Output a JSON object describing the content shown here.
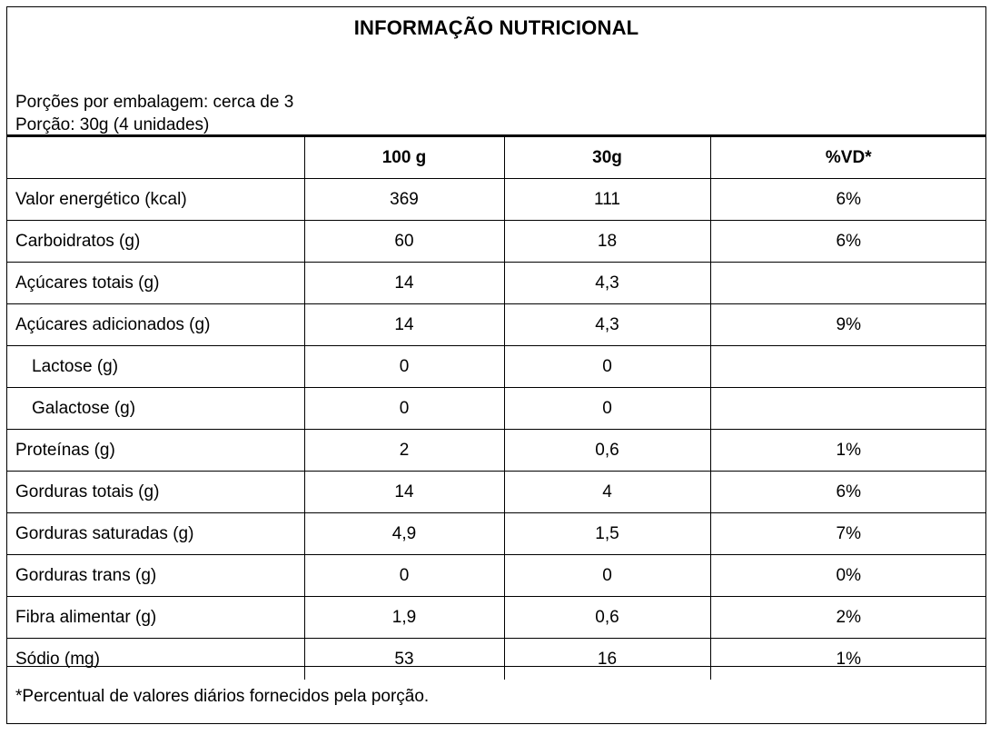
{
  "title": "INFORMAÇÃO NUTRICIONAL",
  "servings_per_package": "Porções por embalagem: cerca de 3",
  "serving_size": "Porção: 30g (4 unidades)",
  "columns": [
    "",
    "100 g",
    "30g",
    "%VD*"
  ],
  "rows": [
    {
      "label": "Valor energético (kcal)",
      "v100": "369",
      "vportion": "111",
      "dv": "6%"
    },
    {
      "label": "Carboidratos (g)",
      "v100": "60",
      "vportion": "18",
      "dv": "6%"
    },
    {
      "label": "Açúcares totais (g)",
      "v100": "14",
      "vportion": "4,3",
      "dv": ""
    },
    {
      "label": "Açúcares adicionados (g)",
      "v100": "14",
      "vportion": "4,3",
      "dv": "9%"
    },
    {
      "label": "Lactose (g)",
      "v100": "0",
      "vportion": "0",
      "dv": "",
      "indent": true
    },
    {
      "label": "Galactose (g)",
      "v100": "0",
      "vportion": "0",
      "dv": "",
      "indent": true
    },
    {
      "label": "Proteínas (g)",
      "v100": "2",
      "vportion": "0,6",
      "dv": "1%"
    },
    {
      "label": "Gorduras totais (g)",
      "v100": "14",
      "vportion": "4",
      "dv": "6%"
    },
    {
      "label": "Gorduras saturadas (g)",
      "v100": "4,9",
      "vportion": "1,5",
      "dv": "7%"
    },
    {
      "label": "Gorduras trans (g)",
      "v100": "0",
      "vportion": "0",
      "dv": "0%"
    },
    {
      "label": "Fibra alimentar (g)",
      "v100": "1,9",
      "vportion": "0,6",
      "dv": "2%"
    },
    {
      "label": "Sódio (mg)",
      "v100": "53",
      "vportion": "16",
      "dv": "1%"
    }
  ],
  "footnote": "*Percentual de valores diários fornecidos pela porção."
}
